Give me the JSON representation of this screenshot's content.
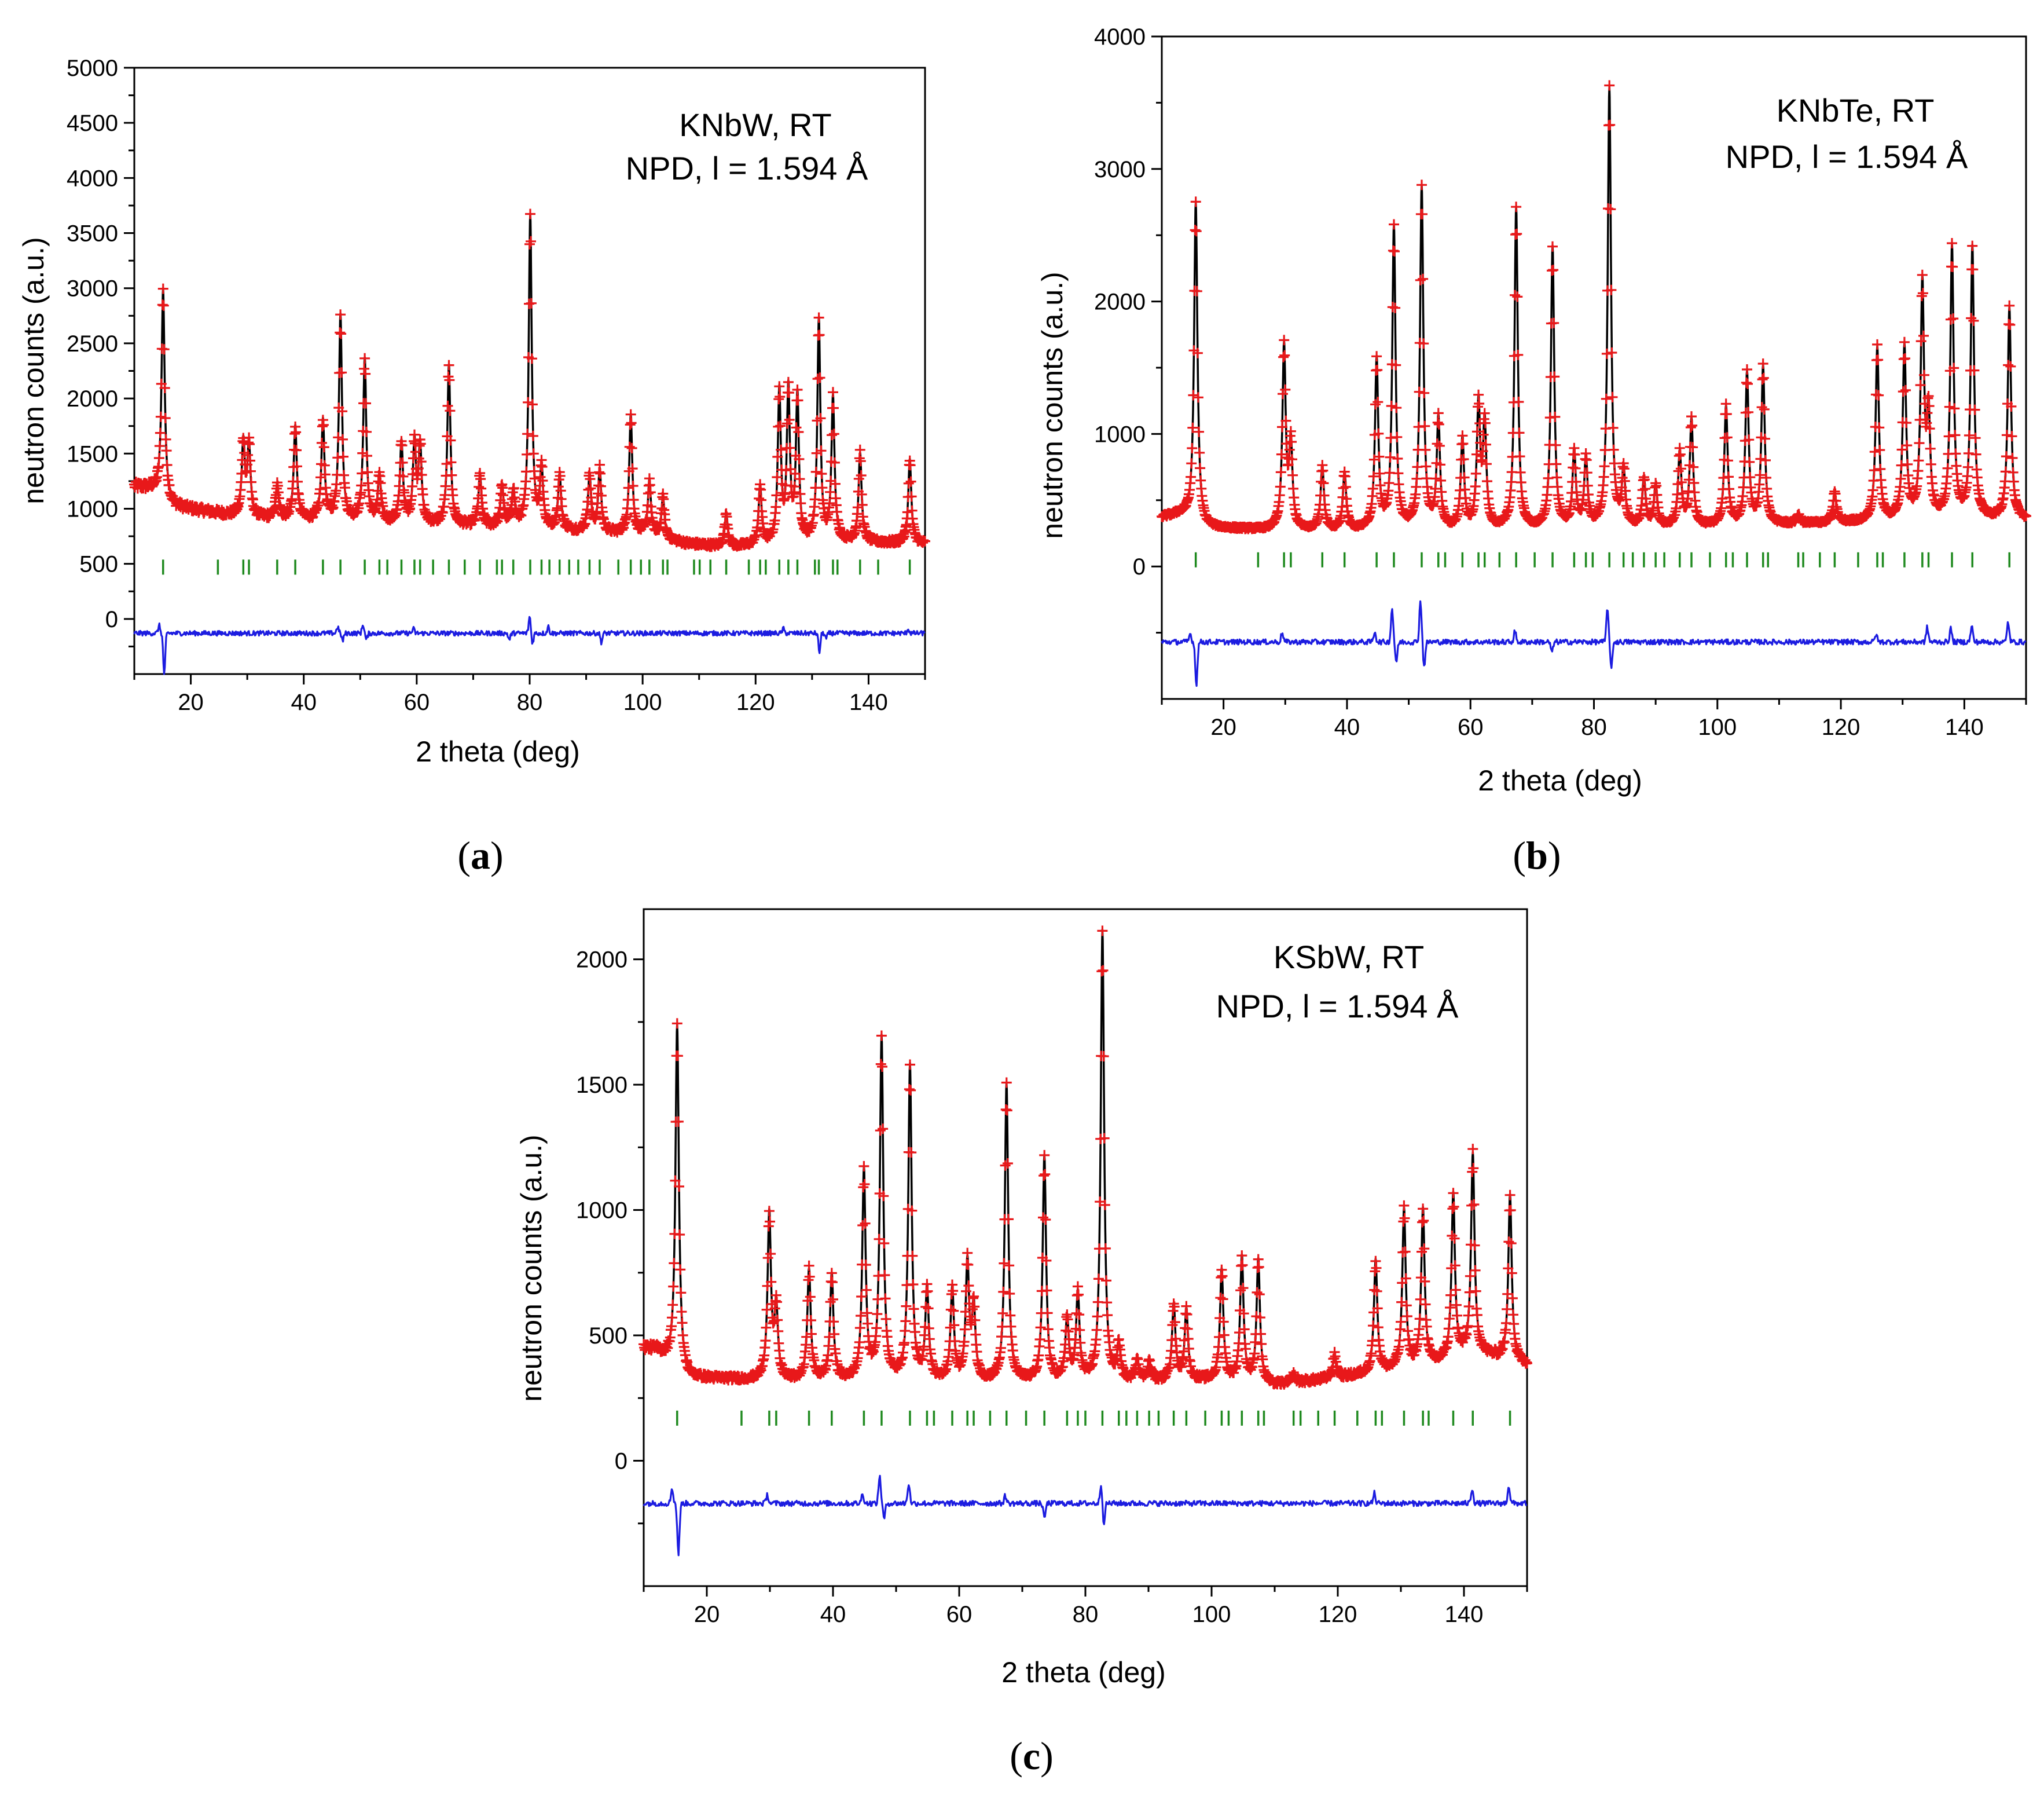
{
  "colors": {
    "observed": "#e8181a",
    "calculated": "#000000",
    "difference": "#1c1ce0",
    "bragg": "#1f8a1f"
  },
  "chart_data": [
    {
      "id": "a",
      "type": "line",
      "panel_label": "a",
      "title": "",
      "annotation_lines": [
        "KNbW, RT",
        "NPD, l = 1.594 Å"
      ],
      "xlabel": "2 theta (deg)",
      "ylabel": "neutron counts (a.u.)",
      "xlim": [
        10,
        150
      ],
      "ylim": [
        -500,
        5000
      ],
      "xticks": [
        20,
        40,
        60,
        80,
        100,
        120,
        140
      ],
      "yticks": [
        0,
        500,
        1000,
        1500,
        2000,
        2500,
        3000,
        3500,
        4000,
        4500,
        5000
      ],
      "series": [
        {
          "name": "Observed",
          "style": "red crosses"
        },
        {
          "name": "Calculated",
          "style": "black line"
        },
        {
          "name": "Difference",
          "style": "blue line"
        },
        {
          "name": "Bragg reflections",
          "style": "green ticks"
        }
      ],
      "background": [
        [
          10,
          1200
        ],
        [
          13,
          1180
        ],
        [
          17,
          1020
        ],
        [
          22,
          980
        ],
        [
          30,
          920
        ],
        [
          50,
          880
        ],
        [
          80,
          820
        ],
        [
          100,
          760
        ],
        [
          108,
          680
        ],
        [
          115,
          650
        ],
        [
          135,
          700
        ],
        [
          150,
          680
        ]
      ],
      "peaks": [
        [
          15.1,
          3000
        ],
        [
          29.3,
          1600
        ],
        [
          30.3,
          1580
        ],
        [
          35.3,
          1200
        ],
        [
          38.5,
          1750
        ],
        [
          43.4,
          1800
        ],
        [
          46.5,
          2750
        ],
        [
          50.8,
          2350
        ],
        [
          53.4,
          1300
        ],
        [
          57.3,
          1600
        ],
        [
          59.6,
          1580
        ],
        [
          60.6,
          1550
        ],
        [
          65.7,
          2300
        ],
        [
          71.2,
          1300
        ],
        [
          75.1,
          1200
        ],
        [
          77.1,
          1150
        ],
        [
          80.1,
          3650
        ],
        [
          82.1,
          1350
        ],
        [
          85.3,
          1300
        ],
        [
          90.6,
          1300
        ],
        [
          92.4,
          1350
        ],
        [
          97.9,
          1850
        ],
        [
          101.2,
          1250
        ],
        [
          103.6,
          1100
        ],
        [
          114.8,
          950
        ],
        [
          120.8,
          1200
        ],
        [
          124.2,
          2050
        ],
        [
          125.8,
          2050
        ],
        [
          127.4,
          2000
        ],
        [
          131.2,
          2700
        ],
        [
          133.7,
          2000
        ],
        [
          138.5,
          1500
        ],
        [
          147.3,
          1450
        ]
      ],
      "peak_width": 0.38,
      "bragg_y": 470,
      "bragg_positions": [
        15.1,
        24.8,
        29.3,
        30.3,
        35.3,
        38.5,
        43.4,
        46.5,
        50.8,
        53.4,
        54.8,
        57.3,
        59.6,
        60.6,
        62.9,
        65.7,
        68.5,
        71.2,
        74.2,
        75.1,
        77.1,
        80.1,
        82.1,
        83.5,
        85.3,
        87.0,
        88.6,
        90.6,
        92.4,
        95.7,
        97.9,
        99.7,
        101.2,
        103.6,
        104.4,
        109.1,
        110.1,
        112.0,
        114.8,
        118.8,
        120.8,
        121.8,
        124.2,
        125.8,
        127.4,
        130.5,
        131.2,
        133.7,
        134.5,
        138.5,
        141.7,
        147.3
      ],
      "diff_baseline": -130,
      "diff_spikes": [
        [
          14.4,
          70
        ],
        [
          15.3,
          -380
        ],
        [
          46.0,
          60
        ],
        [
          46.9,
          -70
        ],
        [
          50.5,
          80
        ],
        [
          51.1,
          -60
        ],
        [
          59.4,
          40
        ],
        [
          76.4,
          -60
        ],
        [
          80.0,
          150
        ],
        [
          80.5,
          -90
        ],
        [
          83.3,
          60
        ],
        [
          92.7,
          -80
        ],
        [
          124.9,
          40
        ],
        [
          131.3,
          -170
        ],
        [
          132.5,
          -50
        ],
        [
          147.0,
          40
        ]
      ]
    },
    {
      "id": "b",
      "type": "line",
      "panel_label": "b",
      "title": "",
      "annotation_lines": [
        "KNbTe, RT",
        "NPD, l = 1.594 Å"
      ],
      "xlabel": "2 theta (deg)",
      "ylabel": "neutron counts (a.u.)",
      "xlim": [
        10,
        150
      ],
      "ylim": [
        -1000,
        4000
      ],
      "xticks": [
        20,
        40,
        60,
        80,
        100,
        120,
        140
      ],
      "yticks": [
        0,
        1000,
        2000,
        3000,
        4000
      ],
      "series": [
        {
          "name": "Observed",
          "style": "red crosses"
        },
        {
          "name": "Calculated",
          "style": "black line"
        },
        {
          "name": "Difference",
          "style": "blue line"
        },
        {
          "name": "Bragg reflections",
          "style": "green ticks"
        }
      ],
      "background": [
        [
          10,
          370
        ],
        [
          13,
          390
        ],
        [
          17,
          290
        ],
        [
          30,
          270
        ],
        [
          60,
          270
        ],
        [
          80,
          280
        ],
        [
          100,
          300
        ],
        [
          120,
          330
        ],
        [
          140,
          360
        ],
        [
          150,
          350
        ]
      ],
      "peaks": [
        [
          15.5,
          2750
        ],
        [
          29.8,
          1650
        ],
        [
          30.9,
          900
        ],
        [
          36.0,
          750
        ],
        [
          39.6,
          700
        ],
        [
          44.8,
          1550
        ],
        [
          47.6,
          2550
        ],
        [
          52.1,
          2850
        ],
        [
          54.8,
          1100
        ],
        [
          58.7,
          950
        ],
        [
          61.3,
          1200
        ],
        [
          62.3,
          1050
        ],
        [
          67.4,
          2700
        ],
        [
          73.3,
          2400
        ],
        [
          76.8,
          850
        ],
        [
          78.7,
          800
        ],
        [
          82.5,
          3600
        ],
        [
          84.8,
          700
        ],
        [
          88.1,
          650
        ],
        [
          90.0,
          600
        ],
        [
          93.9,
          850
        ],
        [
          95.8,
          1100
        ],
        [
          101.4,
          1200
        ],
        [
          104.8,
          1450
        ],
        [
          107.4,
          1500
        ],
        [
          113.1,
          380
        ],
        [
          119.0,
          550
        ],
        [
          125.9,
          1650
        ],
        [
          130.3,
          1650
        ],
        [
          133.2,
          2100
        ],
        [
          134.2,
          1100
        ],
        [
          138.0,
          2400
        ],
        [
          141.3,
          2400
        ],
        [
          147.3,
          1950
        ]
      ],
      "peak_width": 0.38,
      "bragg_y": 50,
      "bragg_positions": [
        15.5,
        25.6,
        29.8,
        30.9,
        36.0,
        39.6,
        44.8,
        47.6,
        52.1,
        54.8,
        55.9,
        58.7,
        61.3,
        62.3,
        64.7,
        67.4,
        70.4,
        73.3,
        76.8,
        78.7,
        79.8,
        82.5,
        84.8,
        86.3,
        88.1,
        90.0,
        91.4,
        93.9,
        95.8,
        98.8,
        101.4,
        102.5,
        104.8,
        107.4,
        108.2,
        113.1,
        113.9,
        116.6,
        119.0,
        122.8,
        125.9,
        126.8,
        130.3,
        133.2,
        134.2,
        138.0,
        141.3,
        147.3
      ],
      "diff_baseline": -570,
      "diff_spikes": [
        [
          14.6,
          60
        ],
        [
          15.6,
          -320
        ],
        [
          29.5,
          70
        ],
        [
          44.5,
          80
        ],
        [
          47.3,
          250
        ],
        [
          48.0,
          -150
        ],
        [
          51.9,
          310
        ],
        [
          52.5,
          -180
        ],
        [
          67.2,
          80
        ],
        [
          73.2,
          -80
        ],
        [
          82.2,
          260
        ],
        [
          82.8,
          -200
        ],
        [
          125.7,
          60
        ],
        [
          134.0,
          110
        ],
        [
          137.8,
          100
        ],
        [
          141.2,
          120
        ],
        [
          147.1,
          150
        ]
      ]
    },
    {
      "id": "c",
      "type": "line",
      "panel_label": "c",
      "title": "",
      "annotation_lines": [
        "KSbW, RT",
        "NPD, l = 1.594 Å"
      ],
      "xlabel": "2 theta (deg)",
      "ylabel": "neutron counts (a.u.)",
      "xlim": [
        10,
        150
      ],
      "ylim": [
        -500,
        2200
      ],
      "xticks": [
        20,
        40,
        60,
        80,
        100,
        120,
        140
      ],
      "yticks": [
        0,
        500,
        1000,
        1500,
        2000
      ],
      "series": [
        {
          "name": "Observed",
          "style": "red crosses"
        },
        {
          "name": "Calculated",
          "style": "black line"
        },
        {
          "name": "Difference",
          "style": "blue line"
        },
        {
          "name": "Bragg reflections",
          "style": "green ticks"
        }
      ],
      "background": [
        [
          10,
          450
        ],
        [
          12,
          440
        ],
        [
          17,
          330
        ],
        [
          30,
          320
        ],
        [
          60,
          315
        ],
        [
          80,
          310
        ],
        [
          100,
          320
        ],
        [
          110,
          300
        ],
        [
          120,
          330
        ],
        [
          135,
          380
        ],
        [
          142,
          430
        ],
        [
          150,
          380
        ]
      ],
      "peaks": [
        [
          15.3,
          1740
        ],
        [
          29.9,
          980
        ],
        [
          31.0,
          600
        ],
        [
          36.2,
          760
        ],
        [
          39.8,
          740
        ],
        [
          44.9,
          1150
        ],
        [
          47.7,
          1680
        ],
        [
          52.2,
          1570
        ],
        [
          54.9,
          680
        ],
        [
          58.9,
          680
        ],
        [
          61.3,
          780
        ],
        [
          62.3,
          600
        ],
        [
          67.5,
          1500
        ],
        [
          73.5,
          1210
        ],
        [
          77.1,
          560
        ],
        [
          78.8,
          660
        ],
        [
          82.7,
          2110
        ],
        [
          85.3,
          450
        ],
        [
          88.2,
          400
        ],
        [
          90.1,
          390
        ],
        [
          94.0,
          620
        ],
        [
          96.0,
          600
        ],
        [
          101.6,
          760
        ],
        [
          104.8,
          810
        ],
        [
          107.4,
          800
        ],
        [
          113.0,
          340
        ],
        [
          119.5,
          420
        ],
        [
          126.0,
          800
        ],
        [
          130.5,
          1000
        ],
        [
          133.5,
          1000
        ],
        [
          138.3,
          1060
        ],
        [
          141.4,
          1220
        ],
        [
          147.3,
          1060
        ]
      ],
      "peak_width": 0.38,
      "bragg_y": 170,
      "bragg_positions": [
        15.3,
        25.5,
        29.9,
        31.0,
        36.2,
        39.8,
        44.9,
        47.7,
        52.2,
        54.9,
        56.0,
        58.9,
        61.3,
        62.3,
        64.9,
        67.5,
        70.6,
        73.5,
        77.1,
        78.8,
        80.0,
        82.7,
        85.3,
        86.5,
        88.2,
        90.1,
        91.6,
        94.0,
        96.0,
        99.0,
        101.6,
        102.7,
        104.8,
        107.4,
        108.3,
        113.0,
        114.1,
        116.9,
        119.5,
        123.1,
        126.0,
        127.0,
        130.5,
        133.5,
        134.4,
        138.3,
        141.4,
        147.3
      ],
      "diff_baseline": -170,
      "diff_spikes": [
        [
          14.5,
          60
        ],
        [
          15.5,
          -200
        ],
        [
          29.6,
          35
        ],
        [
          44.7,
          40
        ],
        [
          47.4,
          110
        ],
        [
          48.1,
          -60
        ],
        [
          52.0,
          80
        ],
        [
          67.3,
          30
        ],
        [
          73.5,
          -60
        ],
        [
          82.5,
          80
        ],
        [
          82.9,
          -80
        ],
        [
          125.8,
          40
        ],
        [
          141.3,
          60
        ],
        [
          147.1,
          70
        ]
      ]
    }
  ]
}
